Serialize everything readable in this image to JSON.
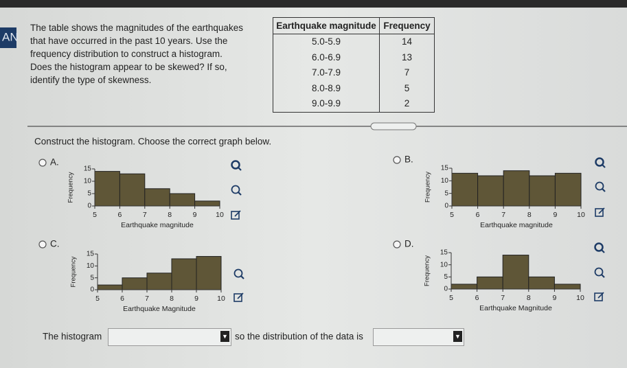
{
  "sidebar_label": "AN",
  "question": {
    "lines": [
      "The table shows the magnitudes of the earthquakes",
      "that have occurred in the past 10 years. Use the",
      "frequency distribution to construct a histogram.",
      "Does the histogram appear to be skewed? If so,",
      "identify the type of skewness."
    ]
  },
  "table": {
    "header": [
      "Earthquake magnitude",
      "Frequency"
    ],
    "rows": [
      [
        "5.0-5.9",
        14
      ],
      [
        "6.0-6.9",
        13
      ],
      [
        "7.0-7.9",
        7
      ],
      [
        "8.0-8.9",
        5
      ],
      [
        "9.0-9.9",
        2
      ]
    ]
  },
  "instruction": "Construct the histogram. Choose the correct graph below.",
  "options": [
    {
      "label": "A.",
      "type": "histogram",
      "bins": [
        5,
        6,
        7,
        8,
        9,
        10
      ],
      "values": [
        14,
        13,
        7,
        5,
        2
      ],
      "xlim": [
        5,
        10
      ],
      "ylim": [
        0,
        15
      ],
      "xticks": [
        5,
        6,
        7,
        8,
        9,
        10
      ],
      "yticks": [
        0,
        5,
        10,
        15
      ],
      "xlabel": "Earthquake magnitude",
      "ylabel": "Frequency",
      "color": "#5f5637"
    },
    {
      "label": "B.",
      "type": "histogram",
      "bins": [
        5,
        6,
        7,
        8,
        9,
        10
      ],
      "values": [
        13,
        12,
        14,
        12,
        13
      ],
      "xlim": [
        5,
        10
      ],
      "ylim": [
        0,
        15
      ],
      "xticks": [
        5,
        6,
        7,
        8,
        9,
        10
      ],
      "yticks": [
        0,
        5,
        10,
        15
      ],
      "xlabel": "Earthquake magnitude",
      "ylabel": "Frequency",
      "color": "#5f5637"
    },
    {
      "label": "C.",
      "type": "histogram",
      "bins": [
        5,
        6,
        7,
        8,
        9,
        10
      ],
      "values": [
        2,
        5,
        7,
        13,
        14
      ],
      "xlim": [
        5,
        10
      ],
      "ylim": [
        0,
        15
      ],
      "xticks": [
        5,
        6,
        7,
        8,
        9,
        10
      ],
      "yticks": [
        0,
        5,
        10,
        15
      ],
      "xlabel": "Earthquake Magnitude",
      "ylabel": "Frequency",
      "color": "#5f5637"
    },
    {
      "label": "D.",
      "type": "histogram",
      "bins": [
        5,
        6,
        7,
        8,
        9,
        10
      ],
      "values": [
        2,
        5,
        14,
        5,
        2
      ],
      "xlim": [
        5,
        10
      ],
      "ylim": [
        0,
        15
      ],
      "xticks": [
        5,
        6,
        7,
        8,
        9,
        10
      ],
      "yticks": [
        0,
        5,
        10,
        15
      ],
      "xlabel": "Earthquake Magnitude",
      "ylabel": "Frequency",
      "color": "#5f5637"
    }
  ],
  "answer": {
    "prefix": "The histogram",
    "middle": "so the distribution of the data is"
  }
}
